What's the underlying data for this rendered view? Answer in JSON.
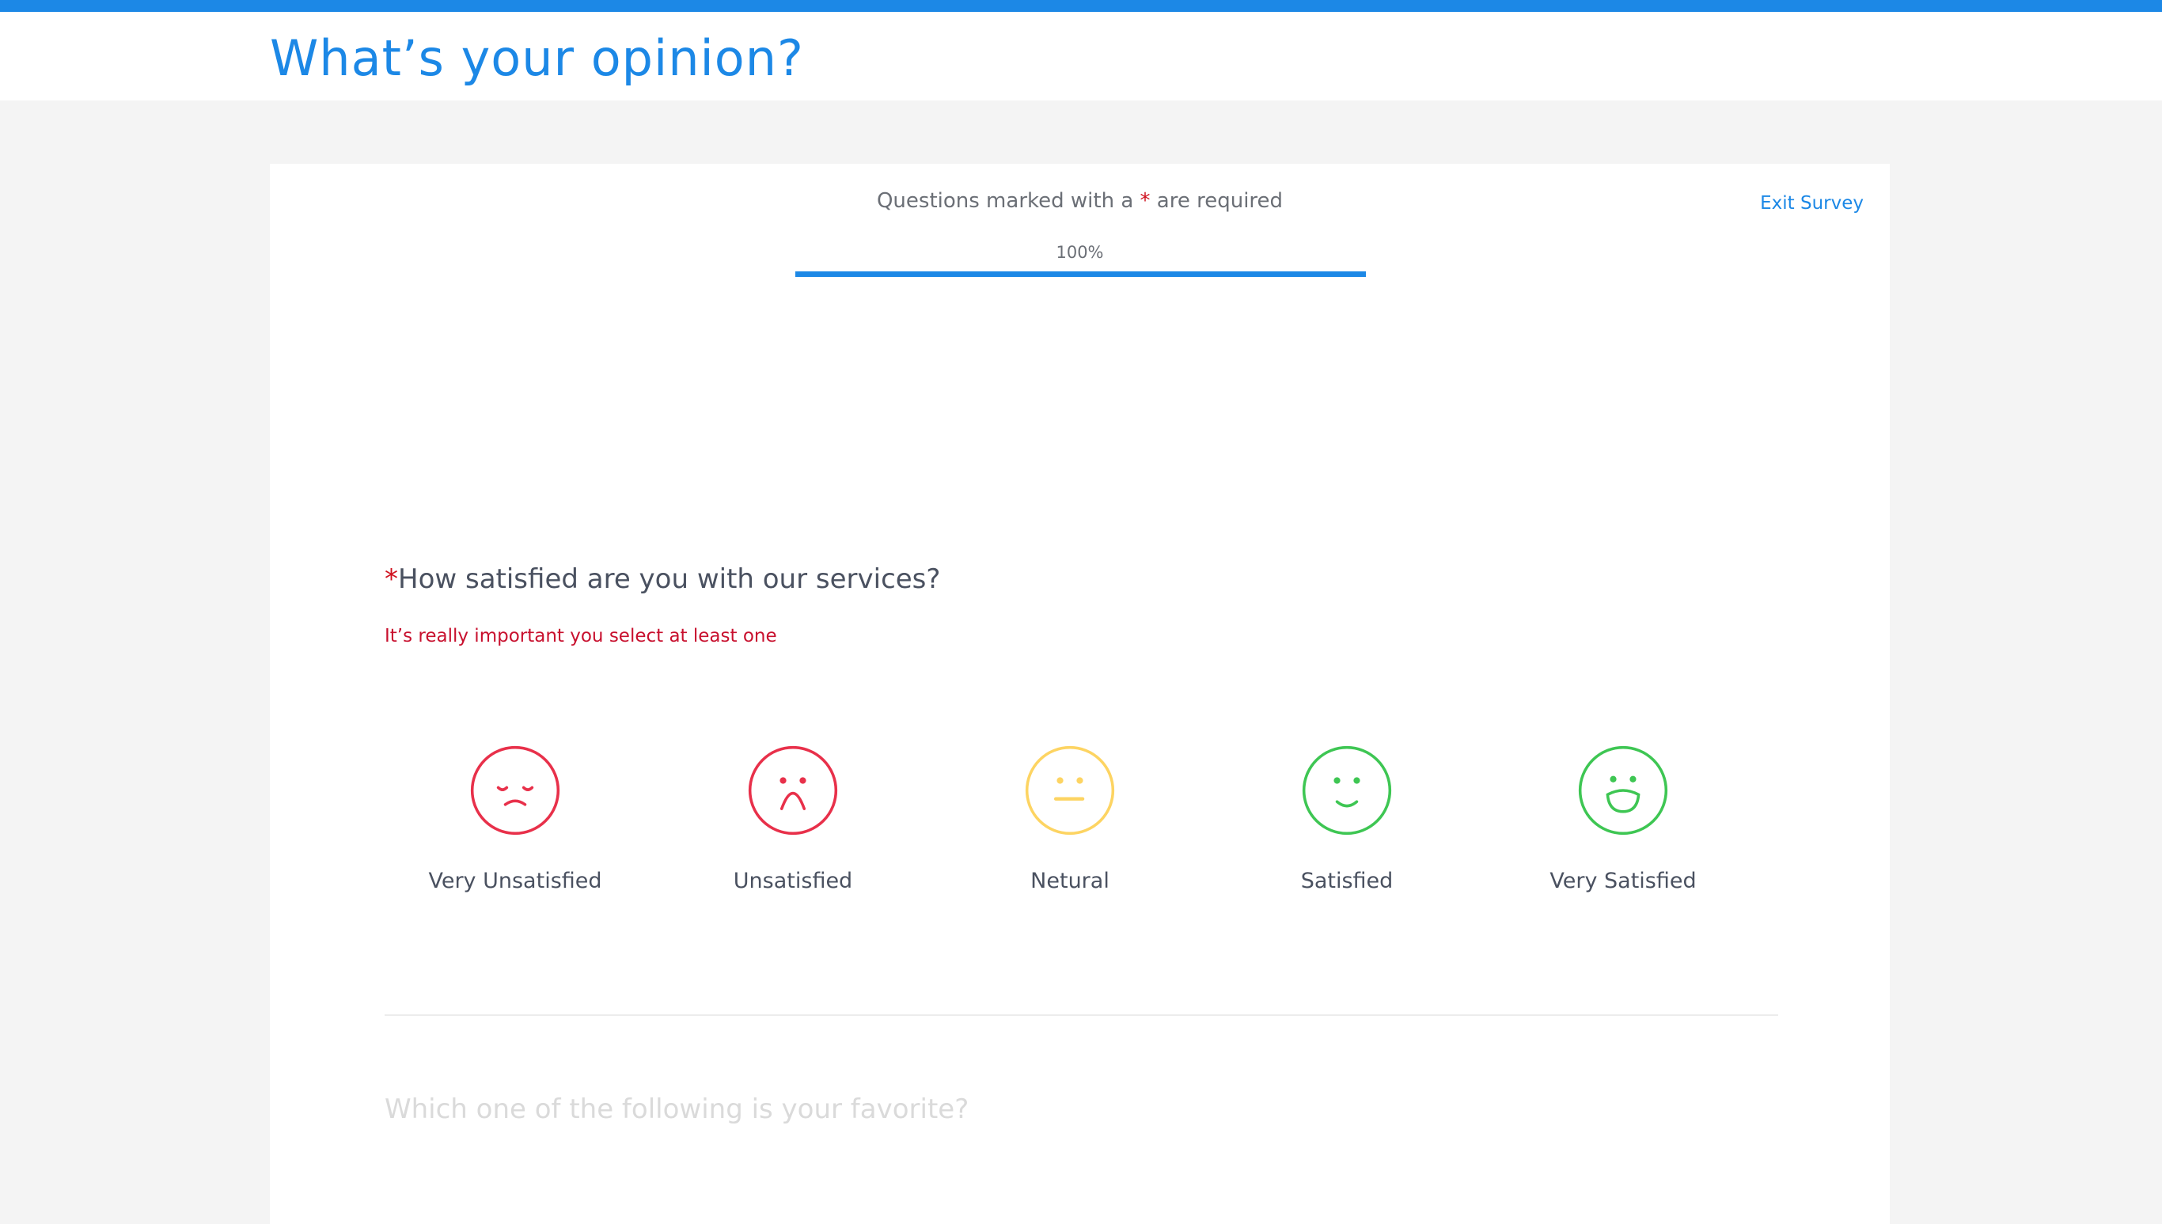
{
  "header": {
    "title": "What’s your opinion?"
  },
  "survey": {
    "required_prefix": "Questions marked with a ",
    "required_star": "*",
    "required_suffix": " are required",
    "exit_label": "Exit Survey",
    "progress_label": "100%",
    "progress_value": 100,
    "question": {
      "star": "*",
      "text": "How satisfied are you with our services?",
      "hint": "It’s really important you select at least one"
    },
    "options": [
      {
        "label": "Very Unsatisfied",
        "icon": "very-unsatisfied-face-icon",
        "color": "#e8304a"
      },
      {
        "label": "Unsatisfied",
        "icon": "unsatisfied-face-icon",
        "color": "#e8304a"
      },
      {
        "label": "Netural",
        "icon": "neutral-face-icon",
        "color": "#fdd462"
      },
      {
        "label": "Satisfied",
        "icon": "satisfied-face-icon",
        "color": "#3ec653"
      },
      {
        "label": "Very Satisfied",
        "icon": "very-satisfied-face-icon",
        "color": "#3ec653"
      }
    ],
    "next_question": "Which one of the following is your favorite?"
  },
  "colors": {
    "accent": "#1c88e6",
    "error": "#c8102e"
  }
}
